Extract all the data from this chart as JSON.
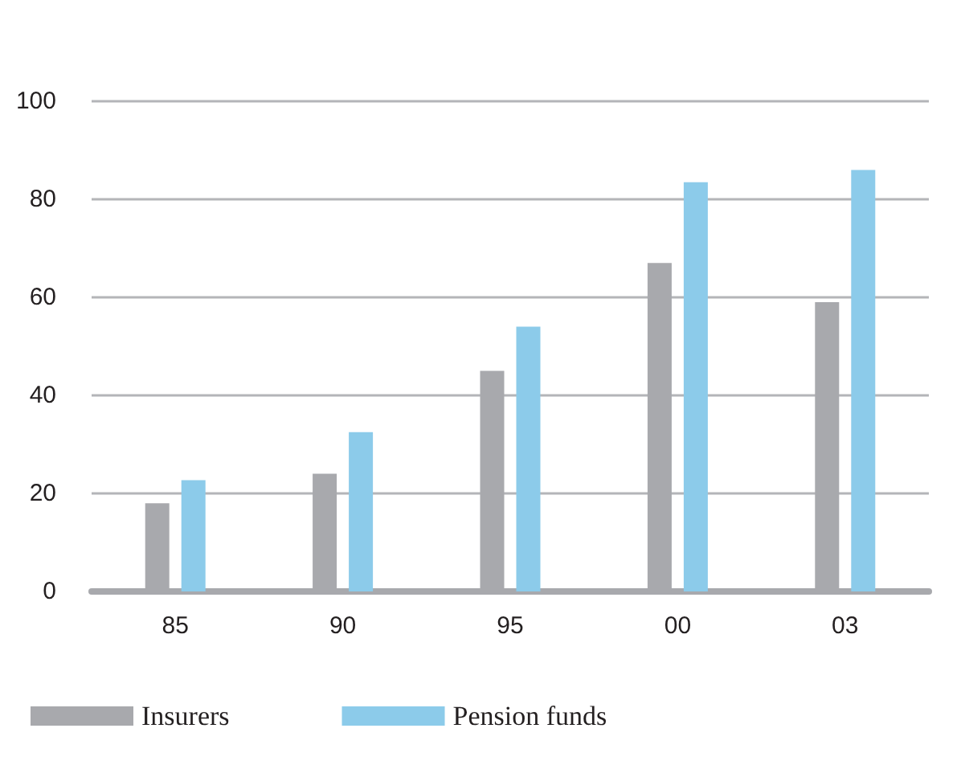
{
  "chart_data": {
    "type": "bar",
    "categories": [
      "85",
      "90",
      "95",
      "00",
      "03"
    ],
    "series": [
      {
        "name": "Insurers",
        "color": "#a8a9ad",
        "values": [
          18,
          24,
          45,
          67,
          59
        ]
      },
      {
        "name": "Pension funds",
        "color": "#8ccbea",
        "values": [
          22.7,
          32.5,
          54,
          83.5,
          86
        ]
      }
    ],
    "ylim": [
      0,
      100
    ],
    "yticks": [
      0,
      20,
      40,
      60,
      80,
      100
    ],
    "grid": "y",
    "legend": "bottom left"
  }
}
